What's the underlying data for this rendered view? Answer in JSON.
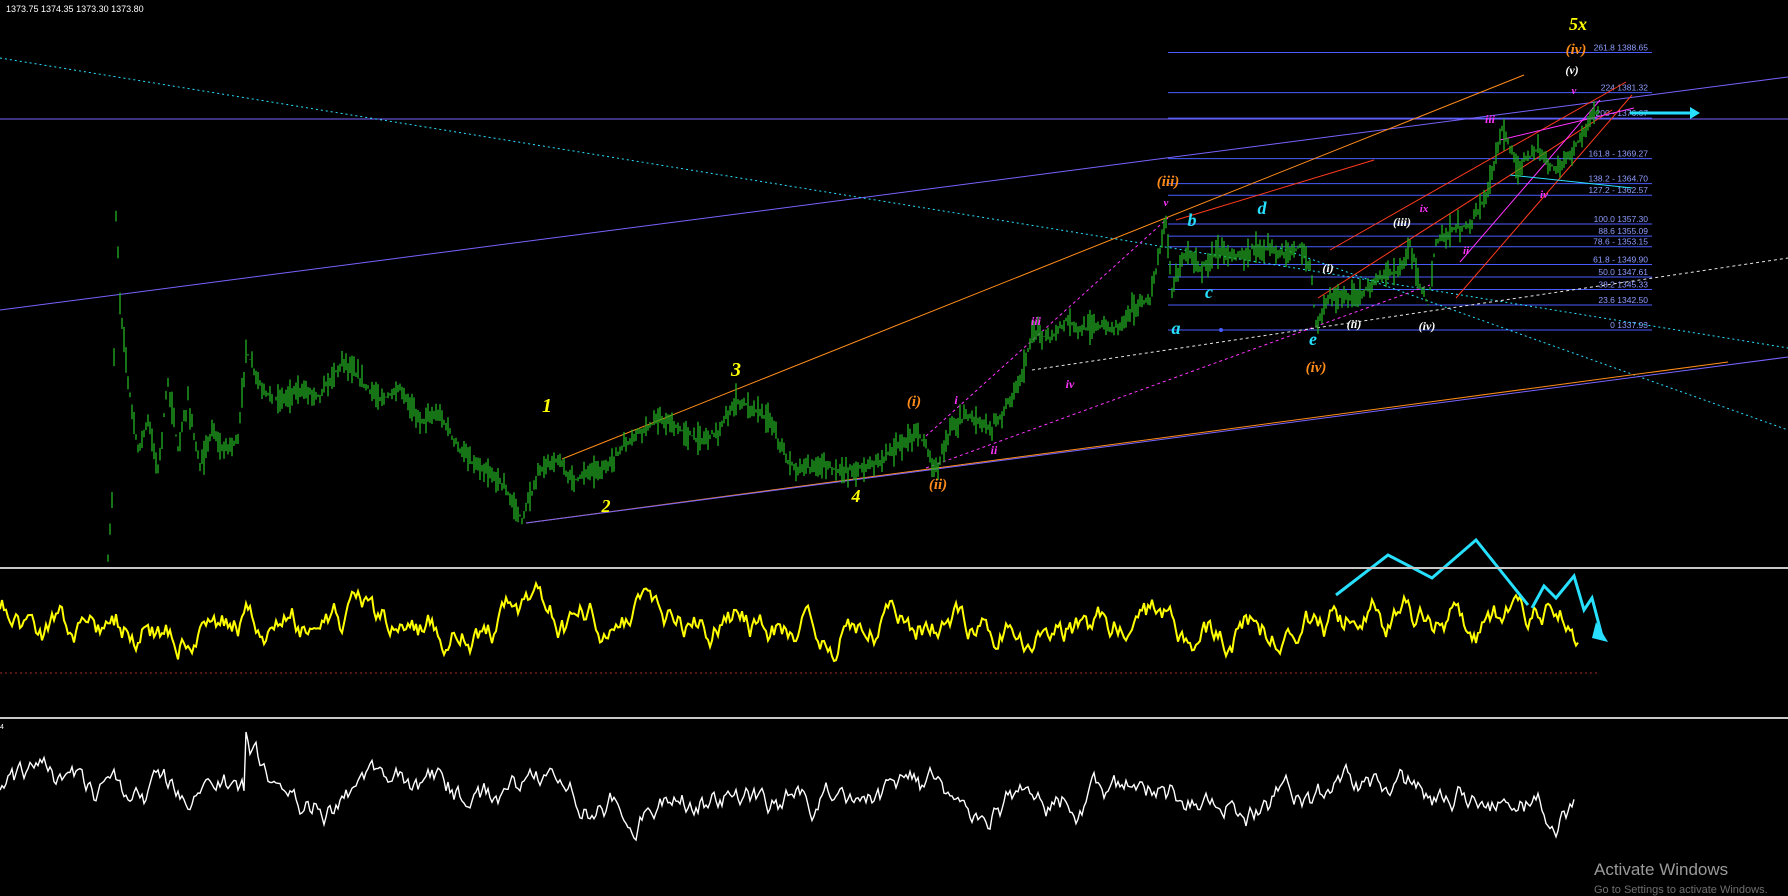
{
  "header": {
    "ohlc": "1373.75 1374.35 1373.30 1373.80"
  },
  "indicator_corner_digit": "4",
  "watermark": {
    "title": "Activate Windows",
    "subtitle": "Go to Settings to activate Windows."
  },
  "colors": {
    "background": "#000000",
    "price": "#1fa51f",
    "oscillator1": "#ffff00",
    "oscillator2": "#ffffff",
    "fib": "#4a5cff",
    "fib_text": "#8f9dff",
    "cyan": "#27e0ff",
    "orange": "#ff8c1a",
    "magenta": "#ff33ff",
    "yellow": "#ffff00",
    "white": "#ffffff",
    "purple": "#7763ff"
  },
  "chart_data": [
    {
      "type": "line",
      "title": "",
      "fib_levels": [
        {
          "label": "261.8 1388.65",
          "value": 1388.65
        },
        {
          "label": "224 1381.32",
          "value": 1381.32
        },
        {
          "label": "200 - 1376.67",
          "value": 1376.67
        },
        {
          "label": "161.8 - 1369.27",
          "value": 1369.27
        },
        {
          "label": "138.2 - 1364.70",
          "value": 1364.7
        },
        {
          "label": "127.2 - 1362.57",
          "value": 1362.57
        },
        {
          "label": "100.0 1357.30",
          "value": 1357.3
        },
        {
          "label": "88.6 1355.09",
          "value": 1355.09
        },
        {
          "label": "78.6 - 1353.15",
          "value": 1353.15
        },
        {
          "label": "61.8 - 1349.90",
          "value": 1349.9
        },
        {
          "label": "50.0 1347.61",
          "value": 1347.61
        },
        {
          "label": "38.2 1345.33",
          "value": 1345.33
        },
        {
          "label": "23.6 1342.50",
          "value": 1342.5
        },
        {
          "label": "0 1337.93",
          "value": 1337.93
        }
      ],
      "wave_labels": [
        {
          "text": "1",
          "color": "yellow"
        },
        {
          "text": "2",
          "color": "yellow"
        },
        {
          "text": "3",
          "color": "yellow"
        },
        {
          "text": "4",
          "color": "yellow"
        },
        {
          "text": "5x",
          "color": "yellow"
        },
        {
          "text": "(i)",
          "color": "orange"
        },
        {
          "text": "(ii)",
          "color": "orange"
        },
        {
          "text": "(iii)",
          "color": "orange"
        },
        {
          "text": "(iv)",
          "color": "orange"
        },
        {
          "text": "(iv)",
          "color": "orange"
        },
        {
          "text": "i",
          "color": "magenta"
        },
        {
          "text": "ii",
          "color": "magenta"
        },
        {
          "text": "iii",
          "color": "magenta"
        },
        {
          "text": "iv",
          "color": "magenta"
        },
        {
          "text": "v",
          "color": "magenta"
        },
        {
          "text": "ii",
          "color": "magenta"
        },
        {
          "text": "iii",
          "color": "magenta"
        },
        {
          "text": "iv",
          "color": "magenta"
        },
        {
          "text": "v",
          "color": "magenta"
        },
        {
          "text": "ix",
          "color": "magenta"
        },
        {
          "text": "a",
          "color": "cyan"
        },
        {
          "text": "b",
          "color": "cyan"
        },
        {
          "text": "c",
          "color": "cyan"
        },
        {
          "text": "d",
          "color": "cyan"
        },
        {
          "text": "e",
          "color": "cyan"
        },
        {
          "text": "(i)",
          "color": "white"
        },
        {
          "text": "(ii)",
          "color": "white"
        },
        {
          "text": "(iii)",
          "color": "white"
        },
        {
          "text": "(iv)",
          "color": "white"
        },
        {
          "text": "(v)",
          "color": "white"
        }
      ]
    },
    {
      "type": "line",
      "title": "",
      "panel": "oscillator-1",
      "series": [
        {
          "values": []
        }
      ]
    },
    {
      "type": "line",
      "title": "",
      "panel": "oscillator-2",
      "series": [
        {
          "values": []
        }
      ]
    }
  ]
}
